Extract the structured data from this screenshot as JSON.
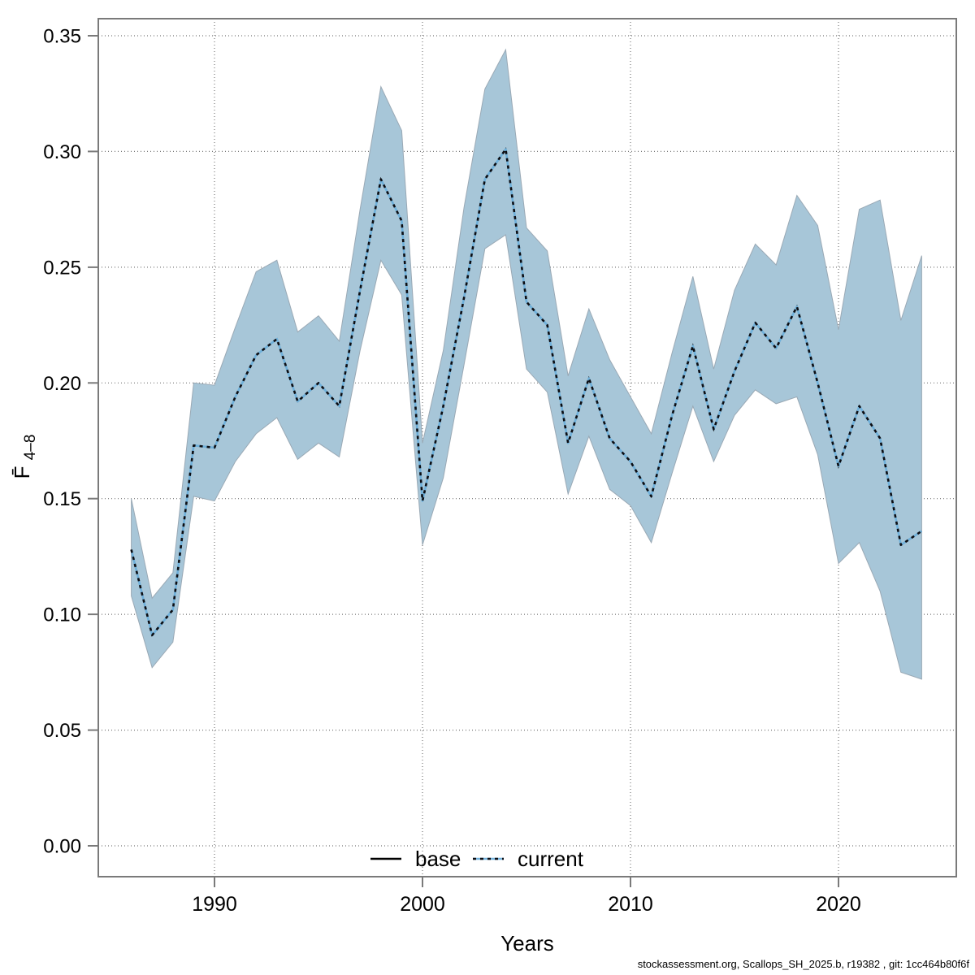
{
  "figure": {
    "background": "#ffffff",
    "footer_credit": "stockassessment.org, Scallops_SH_2025.b, r19382 , git: 1cc464b80f6f"
  },
  "chart_data": {
    "type": "line",
    "title": "",
    "xlabel": "Years",
    "ylabel_main": "F̄",
    "ylabel_sub": "4–8",
    "grid": true,
    "legend_position": "bottom-center",
    "x_tick_labels": [
      "1990",
      "2000",
      "2010",
      "2020"
    ],
    "x_tick_years": [
      1990,
      2000,
      2010,
      2020
    ],
    "y_tick_labels": [
      "0.00",
      "0.05",
      "0.10",
      "0.15",
      "0.20",
      "0.25",
      "0.30",
      "0.35"
    ],
    "y_tick_values": [
      0.0,
      0.05,
      0.1,
      0.15,
      0.2,
      0.25,
      0.3,
      0.35
    ],
    "ylim": [
      0.0,
      0.35
    ],
    "xlim": [
      1986,
      2024
    ],
    "years": [
      1986,
      1987,
      1988,
      1989,
      1990,
      1991,
      1992,
      1993,
      1994,
      1995,
      1996,
      1997,
      1998,
      1999,
      2000,
      2001,
      2002,
      2003,
      2004,
      2005,
      2006,
      2007,
      2008,
      2009,
      2010,
      2011,
      2012,
      2013,
      2014,
      2015,
      2016,
      2017,
      2018,
      2019,
      2020,
      2021,
      2022,
      2023,
      2024
    ],
    "series": [
      {
        "name": "current",
        "style": "dotted",
        "values": [
          0.128,
          0.091,
          0.102,
          0.173,
          0.172,
          0.194,
          0.212,
          0.219,
          0.192,
          0.2,
          0.19,
          0.24,
          0.288,
          0.27,
          0.149,
          0.19,
          0.237,
          0.288,
          0.301,
          0.235,
          0.225,
          0.174,
          0.202,
          0.176,
          0.166,
          0.151,
          0.186,
          0.216,
          0.18,
          0.205,
          0.226,
          0.215,
          0.233,
          0.2,
          0.164,
          0.19,
          0.176,
          0.13,
          0.136
        ],
        "ci_low": [
          0.108,
          0.077,
          0.088,
          0.151,
          0.149,
          0.166,
          0.178,
          0.185,
          0.167,
          0.174,
          0.168,
          0.214,
          0.253,
          0.238,
          0.13,
          0.159,
          0.208,
          0.258,
          0.264,
          0.206,
          0.196,
          0.152,
          0.177,
          0.154,
          0.147,
          0.131,
          0.161,
          0.19,
          0.166,
          0.186,
          0.197,
          0.191,
          0.194,
          0.169,
          0.122,
          0.131,
          0.11,
          0.075,
          0.072
        ],
        "ci_high": [
          0.15,
          0.107,
          0.118,
          0.2,
          0.199,
          0.224,
          0.248,
          0.253,
          0.222,
          0.229,
          0.218,
          0.275,
          0.328,
          0.309,
          0.174,
          0.214,
          0.276,
          0.327,
          0.344,
          0.267,
          0.257,
          0.203,
          0.232,
          0.21,
          0.194,
          0.178,
          0.213,
          0.246,
          0.206,
          0.24,
          0.26,
          0.251,
          0.281,
          0.268,
          0.223,
          0.275,
          0.279,
          0.227,
          0.255
        ]
      }
    ],
    "legend": {
      "entries": [
        {
          "label": "base",
          "line_style": "solid",
          "color": "#000000"
        },
        {
          "label": "current",
          "line_style": "dotted",
          "color": "#74b2dc"
        }
      ]
    },
    "colors": {
      "ci_band_fill": "#a7c6d8",
      "ci_band_edge": "#9aa9b5",
      "current_line": "#6fb0da",
      "current_dash": "#0c0d12",
      "base_line": "#000000",
      "frame": "#7a7a7a",
      "gridline": "#777777"
    }
  }
}
